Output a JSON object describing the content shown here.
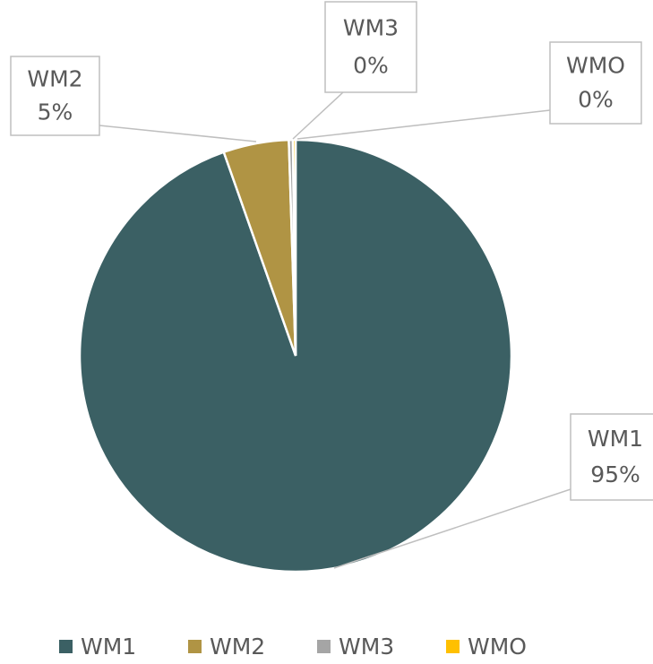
{
  "chart_data": {
    "type": "pie",
    "categories": [
      "WM1",
      "WM2",
      "WM3",
      "WMO"
    ],
    "values": [
      94.6,
      4.9,
      0.3,
      0.2
    ],
    "value_labels": [
      "95%",
      "5%",
      "0%",
      "0%"
    ],
    "colors": [
      "#3b6064",
      "#b09444",
      "#a5a5a5",
      "#ffc000"
    ],
    "legend": "bottom"
  }
}
